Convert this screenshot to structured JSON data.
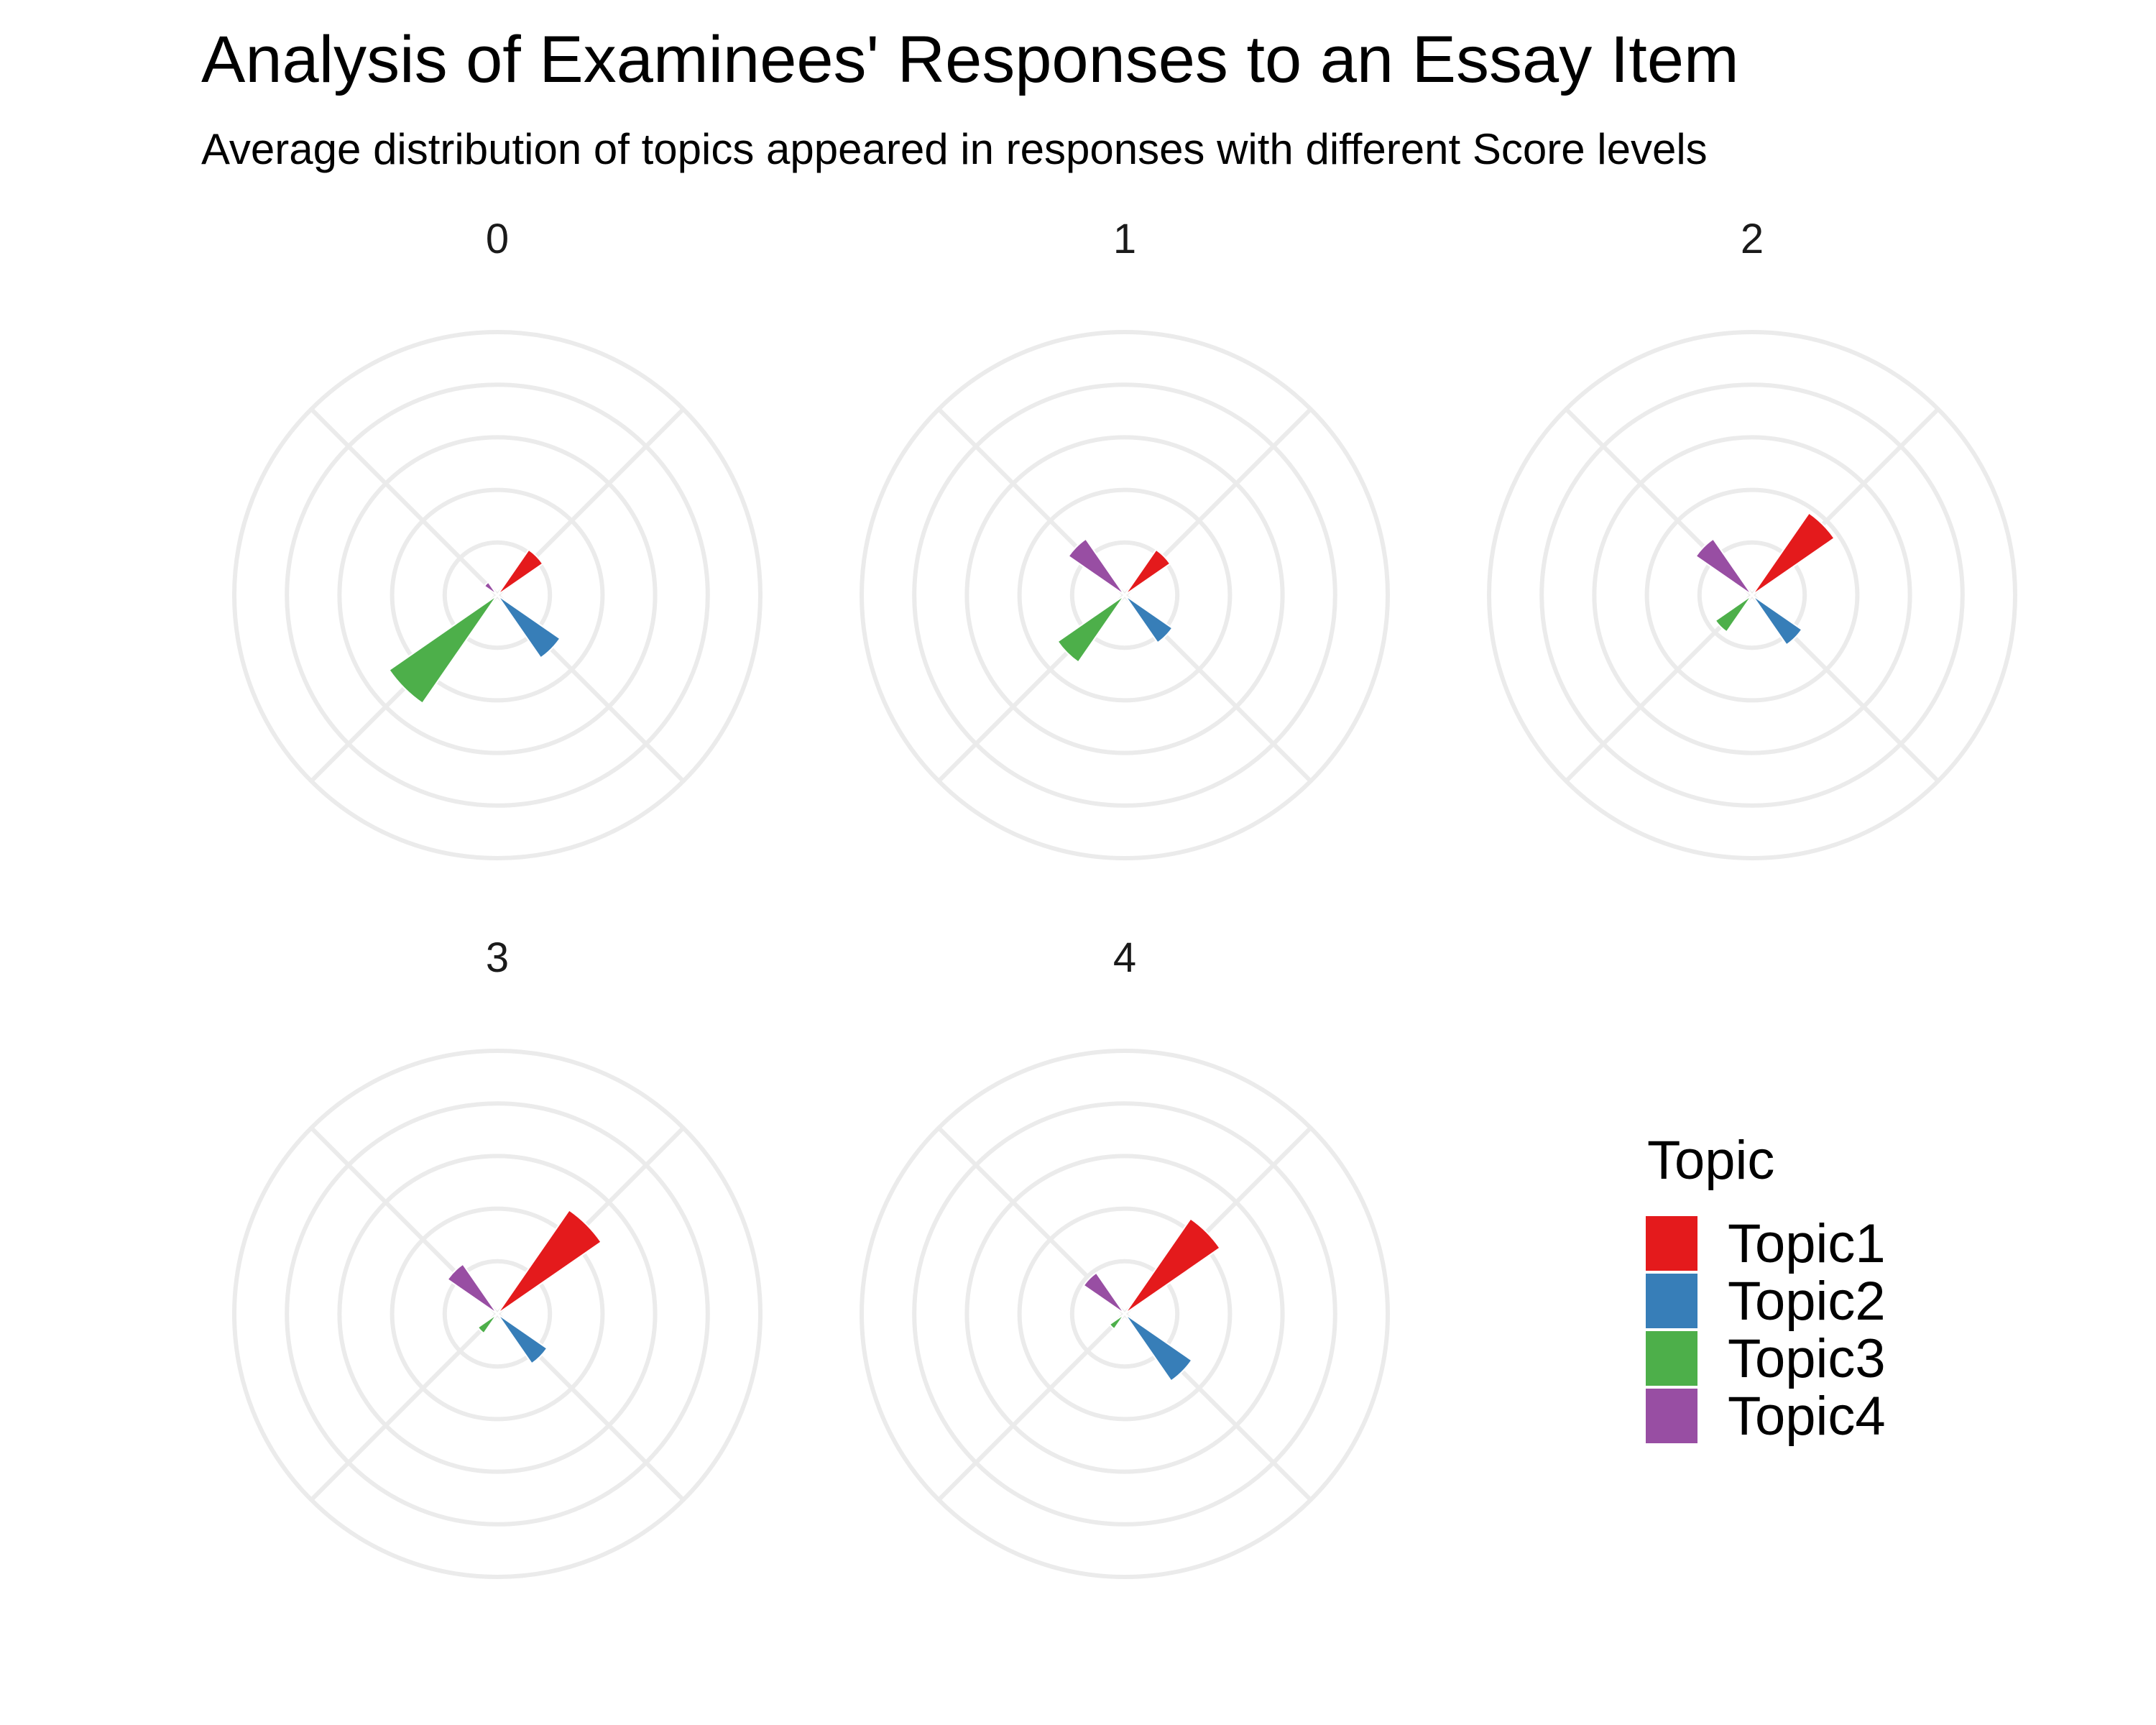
{
  "title": "Analysis of Examinees' Responses to an Essay Item",
  "subtitle": "Average distribution of topics appeared in responses with different Score levels",
  "colors": {
    "Topic1": "#e41a1c",
    "Topic2": "#377eb8",
    "Topic3": "#4daf4a",
    "Topic4": "#984ea3",
    "grid": "#ebebeb"
  },
  "chart_data": {
    "type": "polar-bar",
    "grid": true,
    "rlim": [
      0,
      1
    ],
    "legend": {
      "title": "Topic",
      "position": "right",
      "entries": [
        "Topic1",
        "Topic2",
        "Topic3",
        "Topic4"
      ]
    },
    "categories": [
      "Topic1",
      "Topic2",
      "Topic3",
      "Topic4"
    ],
    "panels": [
      {
        "label": "0",
        "values": [
          0.21,
          0.29,
          0.5,
          0.06
        ]
      },
      {
        "label": "1",
        "values": [
          0.21,
          0.22,
          0.31,
          0.26
        ]
      },
      {
        "label": "2",
        "values": [
          0.38,
          0.23,
          0.17,
          0.26
        ]
      },
      {
        "label": "3",
        "values": [
          0.48,
          0.23,
          0.09,
          0.23
        ]
      },
      {
        "label": "4",
        "values": [
          0.44,
          0.31,
          0.07,
          0.19
        ]
      }
    ]
  }
}
